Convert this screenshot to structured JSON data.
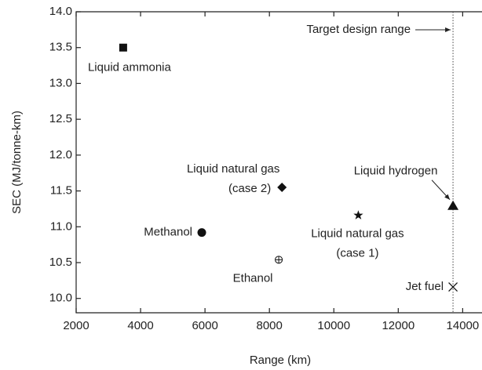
{
  "chart_data": {
    "type": "scatter",
    "xlabel": "Range (km)",
    "ylabel": "SEC (MJ/tonne-km)",
    "xlim": [
      2000,
      14600
    ],
    "ylim": [
      9.8,
      14.0
    ],
    "xticks": [
      2000,
      4000,
      6000,
      8000,
      10000,
      12000,
      14000
    ],
    "yticks": [
      {
        "value": 10,
        "label": "10.0"
      },
      10.5,
      {
        "value": 11,
        "label": "11.0"
      },
      11.5,
      {
        "value": 12,
        "label": "12.0"
      },
      12.5,
      {
        "value": 13,
        "label": "13.0"
      },
      13.5,
      {
        "value": 14,
        "label": "14.0"
      }
    ],
    "points": [
      {
        "label": [
          "Liquid ammonia"
        ],
        "x": 3460,
        "y": 13.5,
        "marker": "square"
      },
      {
        "label": [
          "Liquid natural gas",
          "(case 2)"
        ],
        "x": 8390,
        "y": 11.55,
        "marker": "diamond"
      },
      {
        "label": [
          "Liquid natural gas",
          "(case 1)"
        ],
        "x": 10760,
        "y": 11.16,
        "marker": "star"
      },
      {
        "label": [
          "Liquid hydrogen"
        ],
        "x": 13700,
        "y": 11.29,
        "marker": "triangle"
      },
      {
        "label": [
          "Methanol"
        ],
        "x": 5900,
        "y": 10.92,
        "marker": "circle"
      },
      {
        "label": [
          "Ethanol"
        ],
        "x": 8290,
        "y": 10.54,
        "marker": "crossed-circle"
      },
      {
        "label": [
          "Jet fuel"
        ],
        "x": 13700,
        "y": 10.16,
        "marker": "x"
      }
    ],
    "vline": {
      "x": 13700,
      "label": "Target design range"
    }
  }
}
